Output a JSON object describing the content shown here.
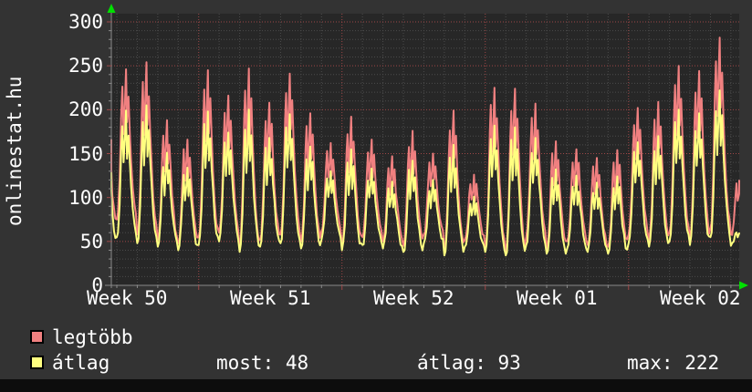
{
  "branding": {
    "site": "onlinestat.hu"
  },
  "chart_data": {
    "type": "line",
    "title": "",
    "xlabel": "",
    "ylabel": "",
    "x_axis": {
      "labels": [
        "Week 50",
        "Week 51",
        "Week 52",
        "Week 01",
        "Week 02"
      ],
      "unit": "days",
      "days_shown": 32,
      "week_boundary_day_indices": [
        5,
        12,
        19,
        26
      ],
      "minor_grid_every_days": 1
    },
    "y_axis": {
      "min": 0,
      "max": 300,
      "major_step": 50,
      "minor_step": 10,
      "tick_labels": [
        "0",
        "50",
        "100",
        "150",
        "200",
        "250",
        "300"
      ]
    },
    "series": [
      {
        "name": "legtöbb",
        "color": "#f08080",
        "style": "line",
        "daily_peaks": [
          230,
          246,
          254,
          188,
          166,
          245,
          216,
          247,
          208,
          241,
          196,
          162,
          192,
          166,
          147,
          176,
          150,
          199,
          126,
          225,
          224,
          207,
          164,
          155,
          145,
          154,
          202,
          209,
          250,
          244,
          282,
          120
        ],
        "daily_lows": [
          70,
          75,
          58,
          52,
          48,
          55,
          60,
          45,
          52,
          58,
          50,
          62,
          48,
          55,
          50,
          45,
          58,
          40,
          52,
          45,
          38,
          55,
          42,
          50,
          46,
          44,
          58,
          52,
          60,
          55,
          65,
          58
        ]
      },
      {
        "name": "átlag",
        "color": "#ffff80",
        "style": "line",
        "daily_peaks": [
          185,
          199,
          205,
          151,
          134,
          198,
          174,
          200,
          168,
          195,
          158,
          130,
          155,
          133,
          118,
          142,
          120,
          160,
          101,
          182,
          180,
          168,
          132,
          125,
          117,
          124,
          163,
          170,
          200,
          196,
          222,
          60
        ],
        "daily_lows": [
          52,
          55,
          48,
          44,
          40,
          46,
          50,
          38,
          44,
          48,
          42,
          52,
          40,
          46,
          42,
          38,
          48,
          34,
          44,
          38,
          34,
          46,
          36,
          42,
          38,
          36,
          48,
          44,
          50,
          46,
          55,
          45
        ]
      }
    ],
    "legend_position": "bottom-left",
    "grid": true,
    "colors": {
      "page_bg": "#333333",
      "plot_bg": "#272727",
      "grid_minor": "#4b4b4b",
      "grid_major": "#9e4747",
      "axis": "#8a8a8a",
      "arrow": "#00e000",
      "text": "#ffffff",
      "footer_band": "#0d0d0d"
    }
  },
  "stats": {
    "most_label": "most:",
    "most_value": "48",
    "avg_label": "átlag:",
    "avg_value": "93",
    "max_label": "max:",
    "max_value": "222"
  }
}
